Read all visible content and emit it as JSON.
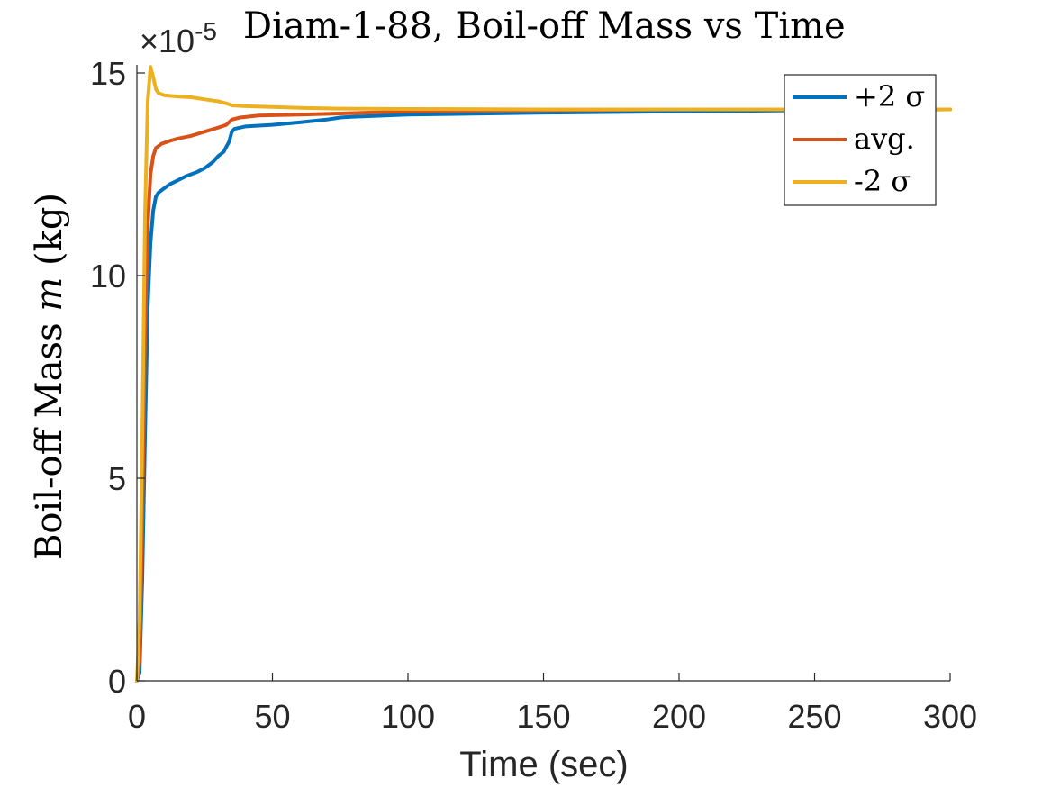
{
  "chart_data": {
    "type": "line",
    "title": "Diam-1-88, Boil-off Mass vs Time",
    "xlabel": "Time (sec)",
    "ylabel_prefix": "Boil-off Mass",
    "ylabel_var": "m",
    "ylabel_suffix": "(kg)",
    "y_exponent_multiplier": "×10",
    "y_exponent_power": "-5",
    "xlim": [
      0,
      300
    ],
    "ylim": [
      0,
      15.2
    ],
    "xticks": [
      0,
      50,
      100,
      150,
      200,
      250,
      300
    ],
    "yticks": [
      0,
      5,
      10,
      15
    ],
    "x_tick_labels": [
      "0",
      "50",
      "100",
      "150",
      "200",
      "250",
      "300"
    ],
    "y_tick_labels": [
      "0",
      "5",
      "10",
      "15"
    ],
    "grid": false,
    "legend_position": "top-right",
    "series": [
      {
        "name": "+2 σ",
        "color": "#0072BD",
        "points": [
          [
            0,
            0
          ],
          [
            1,
            0.2
          ],
          [
            2,
            2.5
          ],
          [
            3,
            6
          ],
          [
            4,
            9.2
          ],
          [
            5,
            10.8
          ],
          [
            6,
            11.6
          ],
          [
            7,
            11.95
          ],
          [
            8,
            12.05
          ],
          [
            10,
            12.15
          ],
          [
            12,
            12.25
          ],
          [
            15,
            12.35
          ],
          [
            18,
            12.45
          ],
          [
            20,
            12.5
          ],
          [
            22,
            12.55
          ],
          [
            25,
            12.65
          ],
          [
            28,
            12.8
          ],
          [
            30,
            12.95
          ],
          [
            32,
            13.05
          ],
          [
            34,
            13.3
          ],
          [
            35,
            13.55
          ],
          [
            36,
            13.62
          ],
          [
            40,
            13.68
          ],
          [
            50,
            13.72
          ],
          [
            60,
            13.78
          ],
          [
            70,
            13.85
          ],
          [
            75,
            13.9
          ],
          [
            80,
            13.92
          ],
          [
            100,
            13.97
          ],
          [
            150,
            14.02
          ],
          [
            200,
            14.05
          ],
          [
            250,
            14.08
          ],
          [
            300,
            14.1
          ]
        ]
      },
      {
        "name": "avg.",
        "color": "#D95319",
        "points": [
          [
            0,
            0
          ],
          [
            1,
            0.5
          ],
          [
            2,
            4
          ],
          [
            3,
            8.5
          ],
          [
            4,
            11.2
          ],
          [
            5,
            12.5
          ],
          [
            6,
            12.95
          ],
          [
            7,
            13.15
          ],
          [
            9,
            13.25
          ],
          [
            12,
            13.32
          ],
          [
            15,
            13.38
          ],
          [
            20,
            13.45
          ],
          [
            25,
            13.55
          ],
          [
            30,
            13.65
          ],
          [
            33,
            13.72
          ],
          [
            35,
            13.85
          ],
          [
            38,
            13.9
          ],
          [
            45,
            13.95
          ],
          [
            60,
            13.97
          ],
          [
            75,
            14.0
          ],
          [
            100,
            14.05
          ],
          [
            150,
            14.08
          ],
          [
            200,
            14.1
          ],
          [
            250,
            14.1
          ],
          [
            300,
            14.1
          ]
        ]
      },
      {
        "name": "-2 σ",
        "color": "#EDB120",
        "points": [
          [
            0,
            0
          ],
          [
            1,
            1.5
          ],
          [
            2,
            6
          ],
          [
            3,
            11.5
          ],
          [
            4,
            14.3
          ],
          [
            5,
            15.15
          ],
          [
            6,
            14.9
          ],
          [
            7,
            14.6
          ],
          [
            8,
            14.5
          ],
          [
            10,
            14.45
          ],
          [
            15,
            14.42
          ],
          [
            20,
            14.4
          ],
          [
            25,
            14.35
          ],
          [
            30,
            14.3
          ],
          [
            33,
            14.25
          ],
          [
            35,
            14.2
          ],
          [
            40,
            14.18
          ],
          [
            50,
            14.16
          ],
          [
            60,
            14.14
          ],
          [
            75,
            14.12
          ],
          [
            100,
            14.11
          ],
          [
            150,
            14.1
          ],
          [
            200,
            14.1
          ],
          [
            250,
            14.1
          ],
          [
            300,
            14.1
          ]
        ]
      }
    ]
  }
}
